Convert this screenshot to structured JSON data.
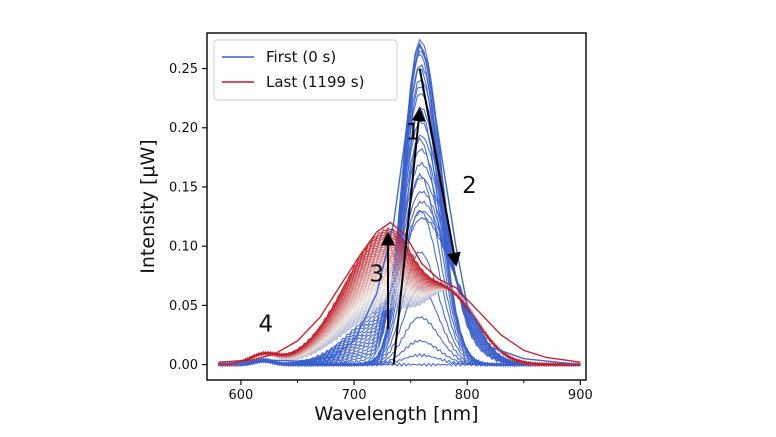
{
  "chart_data": {
    "type": "line",
    "title": "",
    "xlabel": "Wavelength [nm]",
    "ylabel": "Intensity [μW]",
    "xlim": [
      570,
      905
    ],
    "ylim": [
      -0.013,
      0.28
    ],
    "xticks": [
      600,
      700,
      800,
      900
    ],
    "yticks": [
      0.0,
      0.05,
      0.1,
      0.15,
      0.2,
      0.25
    ],
    "ytick_labels": [
      "0.00",
      "0.05",
      "0.10",
      "0.15",
      "0.20",
      "0.25"
    ],
    "grid": false,
    "legend_position": "top-left",
    "colors": {
      "first": "#3a5fcd",
      "last": "#c21a26"
    },
    "series": [
      {
        "name": "First (0 s)",
        "peak_wavelength": 758,
        "x": [
          580,
          620,
          650,
          680,
          700,
          720,
          735,
          745,
          752,
          758,
          765,
          772,
          780,
          790,
          800,
          820,
          850,
          880,
          900
        ],
        "values": [
          0.0,
          0.004,
          0.003,
          0.006,
          0.02,
          0.06,
          0.12,
          0.19,
          0.245,
          0.27,
          0.255,
          0.21,
          0.16,
          0.1,
          0.05,
          0.015,
          0.005,
          0.002,
          0.0
        ]
      },
      {
        "name": "Last (1199 s)",
        "peak_wavelength": 732,
        "x": [
          580,
          610,
          630,
          650,
          670,
          690,
          705,
          720,
          732,
          745,
          760,
          775,
          790,
          810,
          830,
          850,
          870,
          900
        ],
        "values": [
          0.002,
          0.004,
          0.009,
          0.02,
          0.04,
          0.07,
          0.092,
          0.112,
          0.12,
          0.11,
          0.085,
          0.072,
          0.065,
          0.045,
          0.025,
          0.012,
          0.006,
          0.002
        ]
      }
    ],
    "annotations": [
      {
        "text": "1",
        "x": 752,
        "y": 0.19
      },
      {
        "text": "2",
        "x": 802,
        "y": 0.145
      },
      {
        "text": "3",
        "x": 720,
        "y": 0.07
      },
      {
        "text": "4",
        "x": 622,
        "y": 0.028
      }
    ],
    "arrows": [
      {
        "from": [
          735,
          0.0
        ],
        "to": [
          758,
          0.215
        ]
      },
      {
        "from": [
          758,
          0.25
        ],
        "to": [
          790,
          0.085
        ]
      },
      {
        "from": [
          730,
          0.03
        ],
        "to": [
          730,
          0.11
        ]
      }
    ]
  }
}
